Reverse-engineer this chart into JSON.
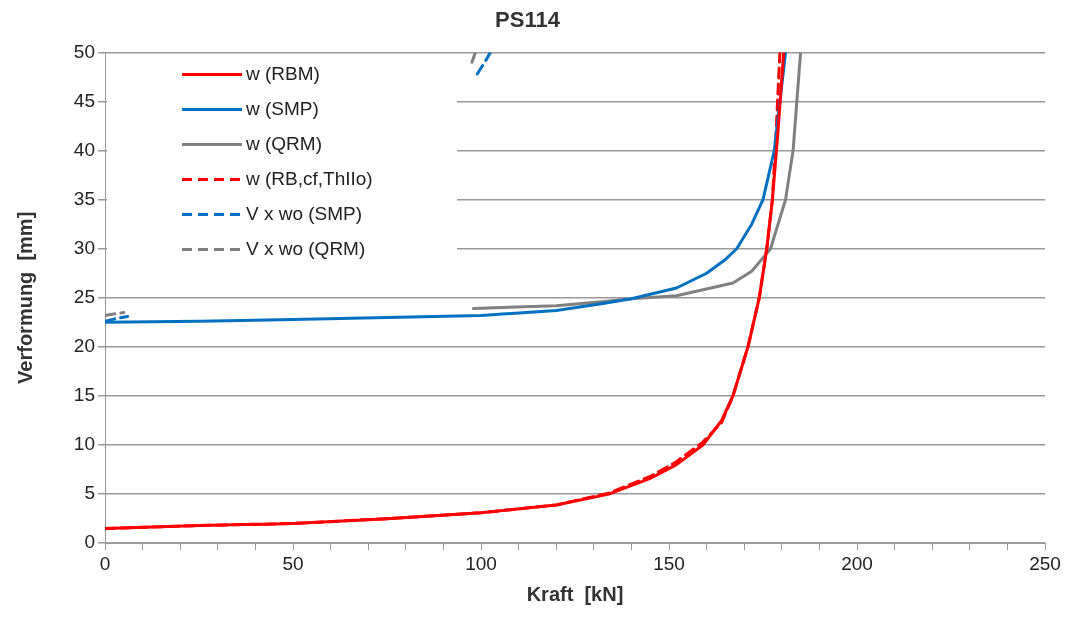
{
  "chart_data": {
    "type": "line",
    "title": "PS114",
    "xlabel": "Kraft  [kN]",
    "ylabel": "Verformung  [mm]",
    "xlim": [
      0,
      250
    ],
    "xticks": [
      0,
      {
        "value": 10,
        "label": null
      },
      {
        "value": 20,
        "label": null
      },
      {
        "value": 30,
        "label": null
      },
      {
        "value": 40,
        "label": null
      },
      50,
      {
        "value": 60,
        "label": null
      },
      {
        "value": 70,
        "label": null
      },
      {
        "value": 80,
        "label": null
      },
      {
        "value": 90,
        "label": null
      },
      100,
      {
        "value": 110,
        "label": null
      },
      {
        "value": 120,
        "label": null
      },
      {
        "value": 130,
        "label": null
      },
      {
        "value": 140,
        "label": null
      },
      150,
      {
        "value": 160,
        "label": null
      },
      {
        "value": 170,
        "label": null
      },
      {
        "value": 180,
        "label": null
      },
      {
        "value": 190,
        "label": null
      },
      200,
      {
        "value": 210,
        "label": null
      },
      {
        "value": 220,
        "label": null
      },
      {
        "value": 230,
        "label": null
      },
      {
        "value": 240,
        "label": null
      },
      250
    ],
    "ylim": [
      0,
      50
    ],
    "yticks": [
      0,
      5,
      10,
      15,
      20,
      25,
      30,
      35,
      40,
      45,
      50
    ],
    "grid": "y",
    "legend": "top left",
    "marker": "none",
    "series": [
      {
        "name": "w (RBM)",
        "color": "#ff0000",
        "line_style": "solid",
        "x": [
          0,
          25,
          50,
          75,
          100,
          120,
          134,
          145,
          152,
          159,
          164,
          167,
          171,
          174,
          176,
          177.5,
          179,
          180.5
        ],
        "values": [
          1.5,
          1.8,
          2.0,
          2.5,
          3.1,
          3.9,
          5,
          6.6,
          8,
          10,
          12.5,
          15,
          20,
          25,
          30,
          35,
          42,
          50
        ]
      },
      {
        "name": "w (SMP)",
        "color": "#0070c0",
        "line_style": "solid",
        "x": [
          0,
          25,
          50,
          75,
          100,
          120,
          132,
          140,
          152,
          160,
          165,
          168,
          172,
          175,
          178,
          179.5,
          181
        ],
        "values": [
          22.5,
          22.6,
          22.8,
          23.0,
          23.2,
          23.7,
          24.4,
          24.9,
          26.0,
          27.5,
          28.9,
          30,
          32.5,
          35,
          40,
          45,
          50
        ]
      },
      {
        "name": "w (QRM)",
        "color": "#808080",
        "line_style": "solid",
        "x": [
          98,
          120,
          132,
          140,
          152,
          167,
          172,
          175.5,
          177,
          181,
          183,
          184,
          185
        ],
        "values": [
          23.9,
          24.2,
          24.6,
          24.9,
          25.2,
          26.5,
          27.7,
          29.3,
          30,
          35,
          40,
          45,
          50
        ]
      },
      {
        "name": "w (RB,cf,ThIIo)",
        "color": "#ff0000",
        "line_style": "dashed",
        "x": [
          0,
          25,
          50,
          75,
          100,
          120,
          134,
          145,
          152,
          159,
          164,
          167,
          171,
          174,
          176,
          177.5,
          178.5,
          179.5
        ],
        "values": [
          1.5,
          1.8,
          2.0,
          2.5,
          3.1,
          3.9,
          5.1,
          6.8,
          8.3,
          10.3,
          12.3,
          15,
          20,
          25,
          30,
          35,
          42,
          50
        ]
      },
      {
        "name": "V x wo (SMP)",
        "color": "#0070c0",
        "line_style": "dashed",
        "x": [
          0,
          3,
          6,
          50,
          99,
          101,
          102.5
        ],
        "values": [
          22.6,
          22.9,
          23.1,
          null,
          47.8,
          49,
          50
        ]
      },
      {
        "name": "V x wo (QRM)",
        "color": "#808080",
        "line_style": "dashed",
        "x": [
          0,
          3,
          5,
          50,
          97.6,
          98.5
        ],
        "values": [
          23.2,
          23.4,
          23.5,
          null,
          49,
          50
        ]
      }
    ]
  }
}
